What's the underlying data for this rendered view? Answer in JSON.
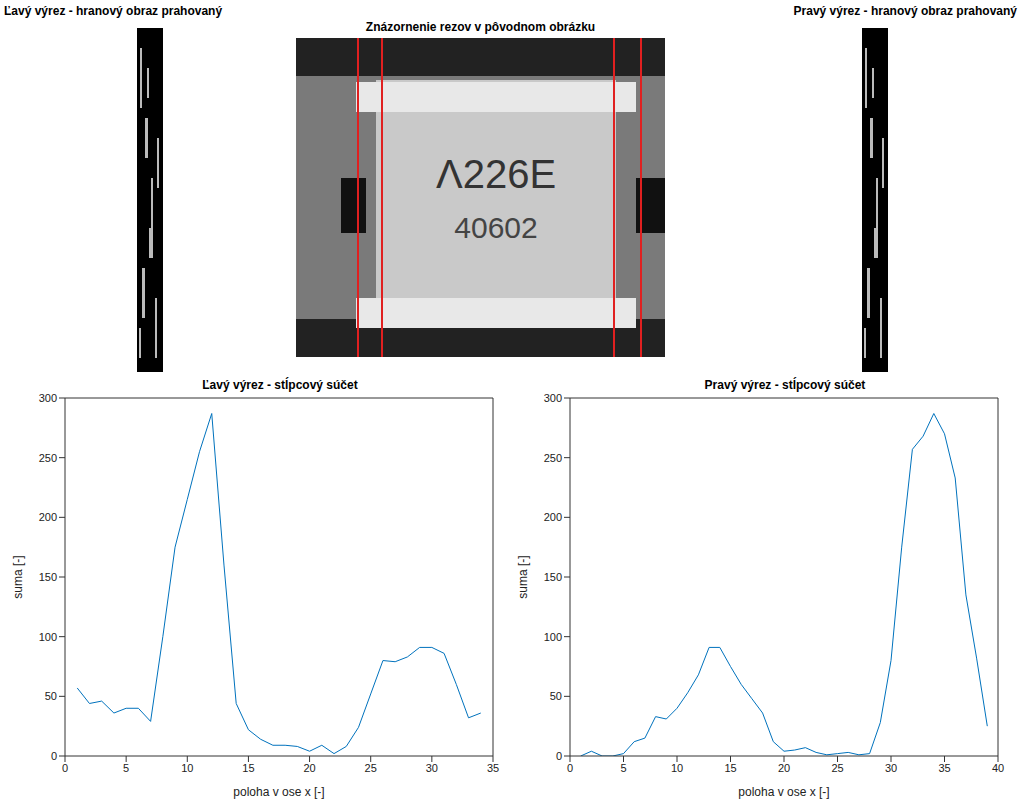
{
  "images": [
    {
      "title": "Ľavý výrez - hranový obraz prahovaný"
    },
    {
      "title": "Znázornenie rezov v pôvodnom obrázku",
      "marking": [
        "Λ226E",
        "40602"
      ]
    },
    {
      "title": "Pravý výrez - hranový obraz prahovaný"
    }
  ],
  "chart_data": [
    {
      "type": "line",
      "title": "Ľavý výrez - stĺpcový súčet",
      "x_label": "poloha v ose x [-]",
      "y_label": "suma [-]",
      "x": [
        1,
        2,
        3,
        4,
        5,
        6,
        7,
        8,
        9,
        10,
        11,
        12,
        13,
        14,
        15,
        16,
        17,
        18,
        19,
        20,
        21,
        22,
        23,
        24,
        25,
        26,
        27,
        28,
        29,
        30,
        31,
        32,
        33,
        34
      ],
      "values": [
        57,
        44,
        46,
        36,
        40,
        40,
        29,
        100,
        175,
        215,
        255,
        287,
        160,
        44,
        22,
        14,
        9,
        9,
        8,
        4,
        9,
        2,
        8,
        24,
        52,
        80,
        79,
        83,
        91,
        91,
        86,
        60,
        32,
        36
      ],
      "color": "#0072bd",
      "xlim": [
        0,
        35
      ],
      "xticks": [
        0,
        5,
        10,
        15,
        20,
        25,
        30,
        35
      ],
      "ylim": [
        0,
        300
      ],
      "yticks": [
        0,
        50,
        100,
        150,
        200,
        250,
        300
      ],
      "grid": false
    },
    {
      "type": "line",
      "title": "Pravý výrez - stĺpcový súčet",
      "x_label": "poloha v ose x [-]",
      "y_label": "suma [-]",
      "x": [
        1,
        2,
        3,
        4,
        5,
        6,
        7,
        8,
        9,
        10,
        11,
        12,
        13,
        14,
        15,
        16,
        17,
        18,
        19,
        20,
        21,
        22,
        23,
        24,
        25,
        26,
        27,
        28,
        29,
        30,
        31,
        32,
        33,
        34,
        35,
        36,
        37,
        38,
        39
      ],
      "values": [
        0,
        4,
        0,
        0,
        2,
        12,
        15,
        33,
        31,
        40,
        53,
        68,
        91,
        91,
        75,
        60,
        48,
        36,
        12,
        4,
        5,
        7,
        3,
        1,
        2,
        3,
        1,
        2,
        28,
        80,
        175,
        257,
        268,
        287,
        270,
        233,
        135,
        82,
        25
      ],
      "color": "#0072bd",
      "xlim": [
        0,
        40
      ],
      "xticks": [
        0,
        5,
        10,
        15,
        20,
        25,
        30,
        35,
        40
      ],
      "ylim": [
        0,
        300
      ],
      "yticks": [
        0,
        50,
        100,
        150,
        200,
        250,
        300
      ],
      "grid": false
    }
  ]
}
